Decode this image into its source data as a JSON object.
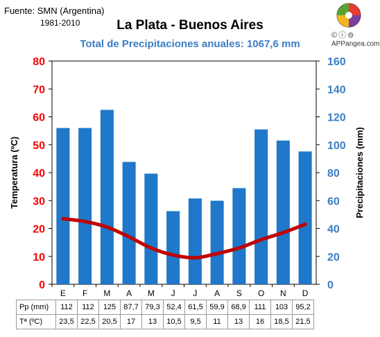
{
  "header": {
    "source": "Fuente: SMN (Argentina)",
    "period": "1981-2010",
    "title": "La Plata - Buenos Aires",
    "subtitle": "Total de Precipitaciones anuales: 1067,6 mm",
    "cc_icons": "©ⓘ⊜",
    "brand": "APPangea.com"
  },
  "colors": {
    "bars": "#1f78c9",
    "line": "#c00000",
    "left_axis": "#ff0000",
    "right_axis": "#3b7dc4"
  },
  "chart_data": {
    "type": "bar",
    "title": "La Plata - Buenos Aires",
    "subtitle": "Total de Precipitaciones anuales: 1067,6 mm",
    "categories": [
      "E",
      "F",
      "M",
      "A",
      "M",
      "J",
      "J",
      "A",
      "S",
      "O",
      "N",
      "D"
    ],
    "series": [
      {
        "name": "Pp (mm)",
        "type": "bar",
        "axis": "right",
        "values": [
          112,
          112,
          125,
          87.7,
          79.3,
          52.4,
          61.5,
          59.9,
          68.9,
          111,
          103,
          95.2
        ]
      },
      {
        "name": "Tª (ºC)",
        "type": "line",
        "axis": "left",
        "values": [
          23.5,
          22.5,
          20.5,
          17,
          13,
          10.5,
          9.5,
          11,
          13,
          16,
          18.5,
          21.5
        ]
      }
    ],
    "ylabel": "Temperatura (ºC)",
    "y2label": "Precipitaciones (mm)",
    "ylim": [
      0,
      80
    ],
    "y2lim": [
      0,
      160
    ],
    "yticks": [
      0,
      10,
      20,
      30,
      40,
      50,
      60,
      70,
      80
    ],
    "y2ticks": [
      0,
      20,
      40,
      60,
      80,
      100,
      120,
      140,
      160
    ],
    "grid": false,
    "table_rows": [
      {
        "label": "Pp (mm)",
        "cells": [
          "112",
          "112",
          "125",
          "87,7",
          "79,3",
          "52,4",
          "61,5",
          "59,9",
          "68,9",
          "111",
          "103",
          "95,2"
        ]
      },
      {
        "label": "Tª (ºC)",
        "cells": [
          "23,5",
          "22,5",
          "20,5",
          "17",
          "13",
          "10,5",
          "9,5",
          "11",
          "13",
          "16",
          "18,5",
          "21,5"
        ]
      }
    ]
  }
}
